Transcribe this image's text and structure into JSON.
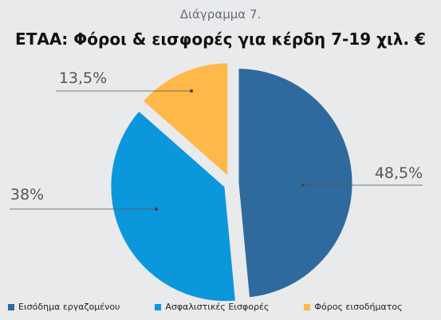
{
  "chart_data": {
    "type": "pie",
    "subtitle": "Διάγραμμα 7.",
    "title": "ΕΤΑΑ: Φόροι & εισφορές για κέρδη 7-19 χιλ. €",
    "slices": [
      {
        "name": "Εισόδημα εργαζομένου",
        "value": 48.5,
        "label": "48,5%",
        "color": "#2e6a9e"
      },
      {
        "name": "Ασφαλιστικές Εισφορές",
        "value": 38,
        "label": "38%",
        "color": "#0b97dc"
      },
      {
        "name": "Φόρος εισοδήματος",
        "value": 13.5,
        "label": "13,5%",
        "color": "#ffb84a"
      }
    ],
    "legend": "bottom"
  }
}
